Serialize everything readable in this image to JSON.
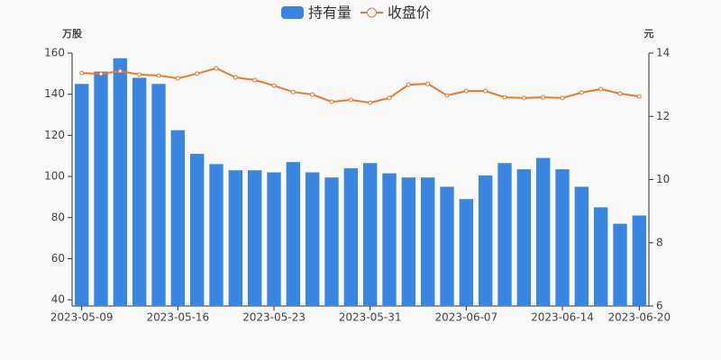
{
  "chart_data": {
    "type": "bar-line",
    "y_label": "万股",
    "y2_label": "元",
    "categories": [
      "2023-05-09",
      null,
      null,
      null,
      null,
      "2023-05-16",
      null,
      null,
      null,
      null,
      "2023-05-23",
      null,
      null,
      null,
      null,
      "2023-05-31",
      null,
      null,
      null,
      null,
      "2023-06-07",
      null,
      null,
      null,
      null,
      "2023-06-14",
      null,
      null,
      null,
      "2023-06-20"
    ],
    "series": [
      {
        "name": "持有量",
        "type": "bar",
        "color": "#3a84e2",
        "axis": "y",
        "values": [
          145,
          151,
          157.5,
          148,
          145,
          122.5,
          111,
          106,
          103,
          103,
          102,
          107,
          102,
          99.5,
          104,
          106.5,
          101.5,
          99.5,
          99.5,
          95,
          89,
          100.5,
          106.5,
          103.5,
          109,
          103.5,
          95,
          85,
          77,
          81
        ]
      },
      {
        "name": "收盘价",
        "type": "line",
        "color": "#e8792f",
        "axis": "y2",
        "values": [
          13.37,
          13.34,
          13.43,
          13.32,
          13.29,
          13.2,
          13.35,
          13.52,
          13.23,
          13.15,
          12.97,
          12.77,
          12.69,
          12.46,
          12.52,
          12.43,
          12.58,
          13.0,
          13.03,
          12.66,
          12.8,
          12.8,
          12.6,
          12.58,
          12.6,
          12.58,
          12.75,
          12.86,
          12.72,
          12.63
        ]
      }
    ],
    "ylim": [
      37,
      160
    ],
    "yticks": [
      40,
      60,
      80,
      100,
      120,
      140,
      160
    ],
    "y2lim": [
      6,
      14
    ],
    "y2ticks": [
      6,
      8,
      10,
      12,
      14
    ],
    "legend": "top"
  }
}
